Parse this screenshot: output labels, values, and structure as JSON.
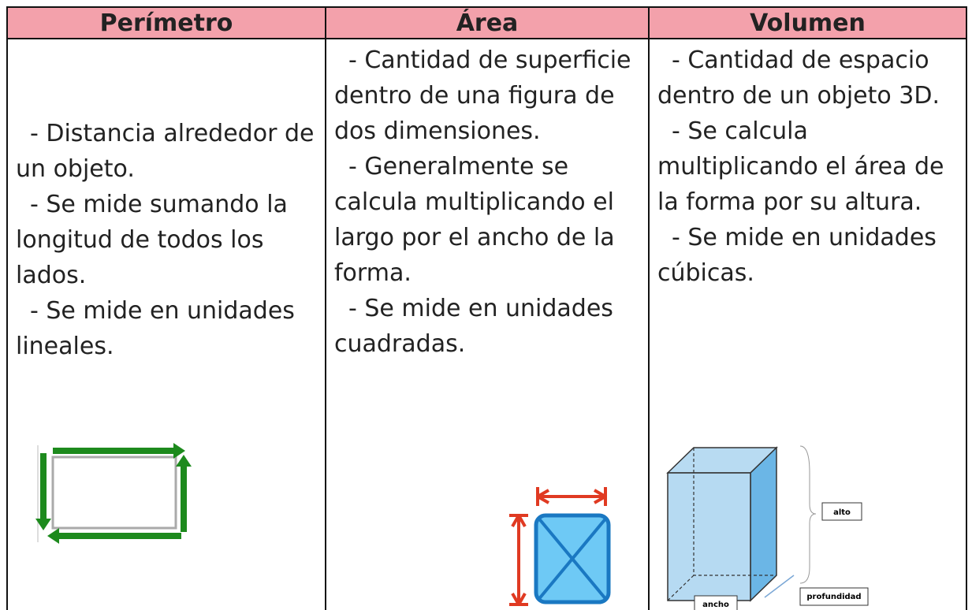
{
  "table": {
    "headers": [
      "Perímetro",
      "Área",
      "Volumen"
    ],
    "cells": [
      [
        "- Distancia alrededor de un objeto.",
        "- Se mide sumando la longitud de todos los lados.",
        "- Se mide en unidades lineales."
      ],
      [
        "- Cantidad de superficie dentro de una figura de dos dimensiones.",
        "- Generalmente se calcula multiplicando el largo por el ancho de la forma.",
        "- Se mide en unidades cuadradas."
      ],
      [
        "- Cantidad de espacio dentro de un objeto 3D.",
        "- Se calcula multiplicando el área de la forma por su altura.",
        "- Se mide en unidades cúbicas."
      ]
    ]
  },
  "volume_figure": {
    "labels": [
      "alto",
      "ancho",
      "profundidad"
    ]
  }
}
